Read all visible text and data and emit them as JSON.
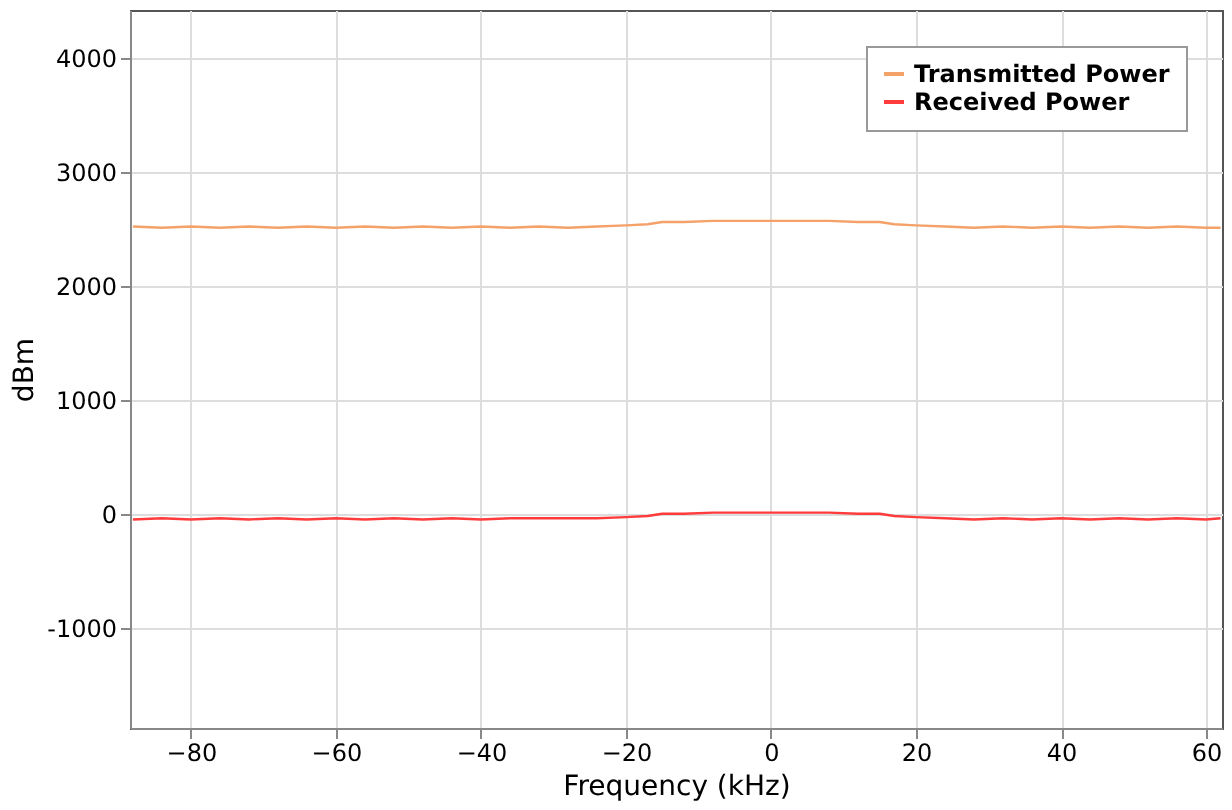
{
  "chart_data": {
    "type": "line",
    "xlabel": "Frequency (kHz)",
    "ylabel": "dBm",
    "x": [
      -88,
      -84,
      -80,
      -76,
      -72,
      -68,
      -64,
      -60,
      -56,
      -52,
      -48,
      -44,
      -40,
      -36,
      -32,
      -28,
      -24,
      -20,
      -17,
      -15,
      -12,
      -8,
      -4,
      0,
      4,
      8,
      12,
      15,
      17,
      20,
      24,
      28,
      32,
      36,
      40,
      44,
      48,
      52,
      56,
      60,
      62
    ],
    "xlim": [
      -88.4,
      62.2
    ],
    "xticks": [
      -80,
      -60,
      -40,
      -20,
      0,
      20,
      40,
      60
    ],
    "ylim": [
      -1880,
      4420
    ],
    "yticks": [
      -1000,
      0,
      1000,
      2000,
      3000,
      4000
    ],
    "series": [
      {
        "name": "Transmitted Power",
        "color": "#f4a26a",
        "values": [
          2520,
          2510,
          2520,
          2510,
          2520,
          2510,
          2520,
          2510,
          2520,
          2510,
          2520,
          2510,
          2520,
          2510,
          2520,
          2510,
          2520,
          2530,
          2540,
          2560,
          2560,
          2570,
          2570,
          2570,
          2570,
          2570,
          2560,
          2560,
          2540,
          2530,
          2520,
          2510,
          2520,
          2510,
          2520,
          2510,
          2520,
          2510,
          2520,
          2510,
          2510
        ]
      },
      {
        "name": "Received Power",
        "color": "#ff3b3b",
        "values": [
          -50,
          -40,
          -50,
          -40,
          -50,
          -40,
          -50,
          -40,
          -50,
          -40,
          -50,
          -40,
          -50,
          -40,
          -40,
          -40,
          -40,
          -30,
          -20,
          0,
          0,
          10,
          10,
          10,
          10,
          10,
          0,
          0,
          -20,
          -30,
          -40,
          -50,
          -40,
          -50,
          -40,
          -50,
          -40,
          -50,
          -40,
          -50,
          -40
        ]
      }
    ],
    "grid": true,
    "legend": "top right",
    "marker": "none",
    "line_style": "solid"
  }
}
